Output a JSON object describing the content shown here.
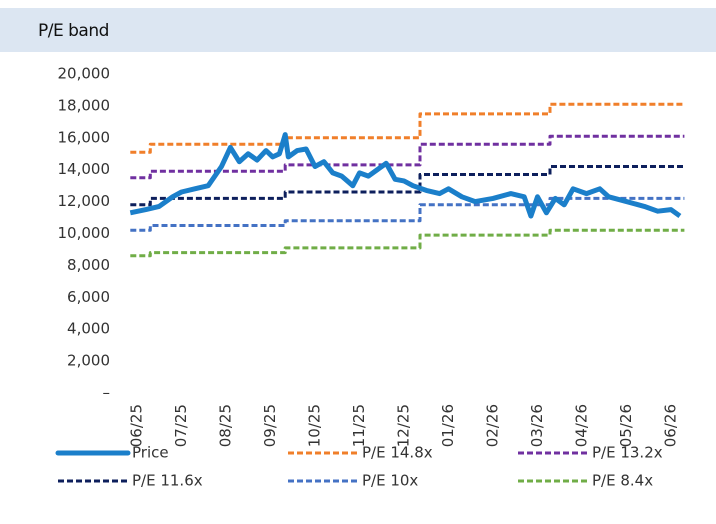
{
  "chart_data": {
    "type": "line",
    "title": "P/E band",
    "xlim": [
      -0.15,
      12.3
    ],
    "xticks": [
      {
        "value": 0,
        "label": "06/25"
      },
      {
        "value": 1,
        "label": "07/25"
      },
      {
        "value": 2,
        "label": "08/25"
      },
      {
        "value": 3,
        "label": "09/25"
      },
      {
        "value": 4,
        "label": "10/25"
      },
      {
        "value": 5,
        "label": "11/25"
      },
      {
        "value": 6,
        "label": "12/25"
      },
      {
        "value": 7,
        "label": "01/26"
      },
      {
        "value": 8,
        "label": "02/26"
      },
      {
        "value": 9,
        "label": "03/26"
      },
      {
        "value": 10,
        "label": "04/26"
      },
      {
        "value": 11,
        "label": "05/26"
      },
      {
        "value": 12,
        "label": "06/26"
      }
    ],
    "ylim": [
      0,
      20000
    ],
    "yticks": [
      {
        "value": 0,
        "label": "–"
      },
      {
        "value": 2000,
        "label": "2,000"
      },
      {
        "value": 4000,
        "label": "4,000"
      },
      {
        "value": 6000,
        "label": "6,000"
      },
      {
        "value": 8000,
        "label": "8,000"
      },
      {
        "value": 10000,
        "label": "10,000"
      },
      {
        "value": 12000,
        "label": "12,000"
      },
      {
        "value": 14000,
        "label": "14,000"
      },
      {
        "value": 16000,
        "label": "16,000"
      },
      {
        "value": 18000,
        "label": "18,000"
      },
      {
        "value": 20000,
        "label": "20,000"
      }
    ],
    "grid": false,
    "series": [
      {
        "name": "Price",
        "color": "#1b7fca",
        "dashed": false,
        "x": [
          -0.15,
          0.2,
          0.5,
          0.8,
          1.0,
          1.3,
          1.6,
          1.9,
          2.1,
          2.3,
          2.5,
          2.7,
          2.9,
          3.05,
          3.2,
          3.33,
          3.4,
          3.6,
          3.8,
          4.0,
          4.2,
          4.4,
          4.6,
          4.85,
          5.0,
          5.2,
          5.4,
          5.6,
          5.8,
          6.0,
          6.2,
          6.5,
          6.8,
          7.0,
          7.3,
          7.6,
          8.0,
          8.4,
          8.7,
          8.85,
          9.0,
          9.2,
          9.4,
          9.6,
          9.8,
          10.1,
          10.4,
          10.6,
          11.0,
          11.4,
          11.7,
          12.0,
          12.2
        ],
        "values": [
          11300,
          11500,
          11700,
          12300,
          12600,
          12800,
          13000,
          14200,
          15400,
          14500,
          15000,
          14600,
          15200,
          14800,
          15000,
          16200,
          14800,
          15200,
          15300,
          14200,
          14500,
          13800,
          13600,
          13000,
          13800,
          13600,
          14000,
          14400,
          13400,
          13300,
          13000,
          12700,
          12500,
          12800,
          12300,
          12000,
          12200,
          12500,
          12300,
          11100,
          12300,
          11300,
          12200,
          11800,
          12800,
          12500,
          12800,
          12300,
          12000,
          11700,
          11400,
          11500,
          11100
        ]
      },
      {
        "name": "P/E 14.8x",
        "color": "#f07f2a",
        "dashed": true,
        "x": [
          -0.15,
          0.3,
          0.3,
          3.33,
          3.33,
          6.36,
          6.36,
          9.28,
          9.28,
          12.3
        ],
        "values": [
          15100,
          15100,
          15600,
          15600,
          16000,
          16000,
          17500,
          17500,
          18100,
          18100
        ]
      },
      {
        "name": "P/E 13.2x",
        "color": "#7030a0",
        "dashed": true,
        "x": [
          -0.15,
          0.3,
          0.3,
          3.33,
          3.33,
          6.36,
          6.36,
          9.28,
          9.28,
          12.3
        ],
        "values": [
          13500,
          13500,
          13900,
          13900,
          14300,
          14300,
          15600,
          15600,
          16100,
          16100
        ]
      },
      {
        "name": "P/E 11.6x",
        "color": "#0d1f5c",
        "dashed": true,
        "x": [
          -0.15,
          0.3,
          0.3,
          3.33,
          3.33,
          6.36,
          6.36,
          9.28,
          9.28,
          12.3
        ],
        "values": [
          11800,
          11800,
          12200,
          12200,
          12600,
          12600,
          13700,
          13700,
          14200,
          14200
        ]
      },
      {
        "name": "P/E 10x",
        "color": "#4472c4",
        "dashed": true,
        "x": [
          -0.15,
          0.3,
          0.3,
          3.33,
          3.33,
          6.36,
          6.36,
          9.28,
          9.28,
          12.3
        ],
        "values": [
          10200,
          10200,
          10500,
          10500,
          10800,
          10800,
          11800,
          11800,
          12200,
          12200
        ]
      },
      {
        "name": "P/E 8.4x",
        "color": "#70ad47",
        "dashed": true,
        "x": [
          -0.15,
          0.3,
          0.3,
          3.33,
          3.33,
          6.36,
          6.36,
          9.28,
          9.28,
          12.3
        ],
        "values": [
          8600,
          8600,
          8800,
          8800,
          9100,
          9100,
          9900,
          9900,
          10200,
          10200
        ]
      }
    ]
  }
}
